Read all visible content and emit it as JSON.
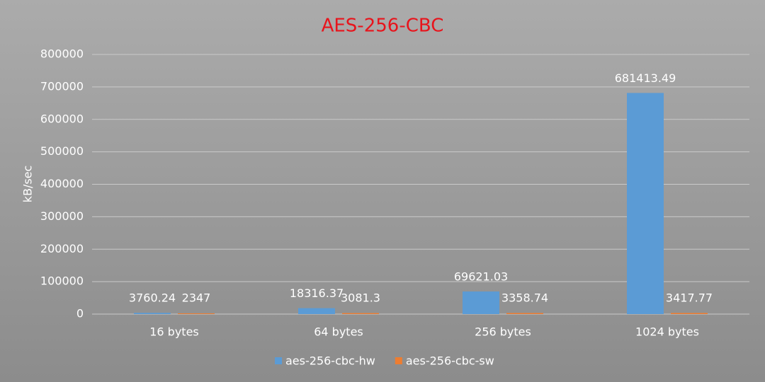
{
  "chart_data": {
    "type": "bar",
    "title": "AES-256-CBC",
    "y_label": "kB/sec",
    "categories": [
      "16 bytes",
      "64 bytes",
      "256 bytes",
      "1024 bytes"
    ],
    "series": [
      {
        "name": "aes-256-cbc-hw",
        "color": "#5b9bd5",
        "values": [
          3760.24,
          18316.37,
          69621.03,
          681413.49
        ]
      },
      {
        "name": "aes-256-cbc-sw",
        "color": "#ed7d31",
        "values": [
          2347,
          3081.3,
          3358.74,
          3417.77
        ]
      }
    ],
    "ylim": [
      0,
      800000
    ],
    "yticks": [
      0,
      100000,
      200000,
      300000,
      400000,
      500000,
      600000,
      700000,
      800000
    ],
    "grid": true,
    "legend": "bottom",
    "data_labels": true
  }
}
